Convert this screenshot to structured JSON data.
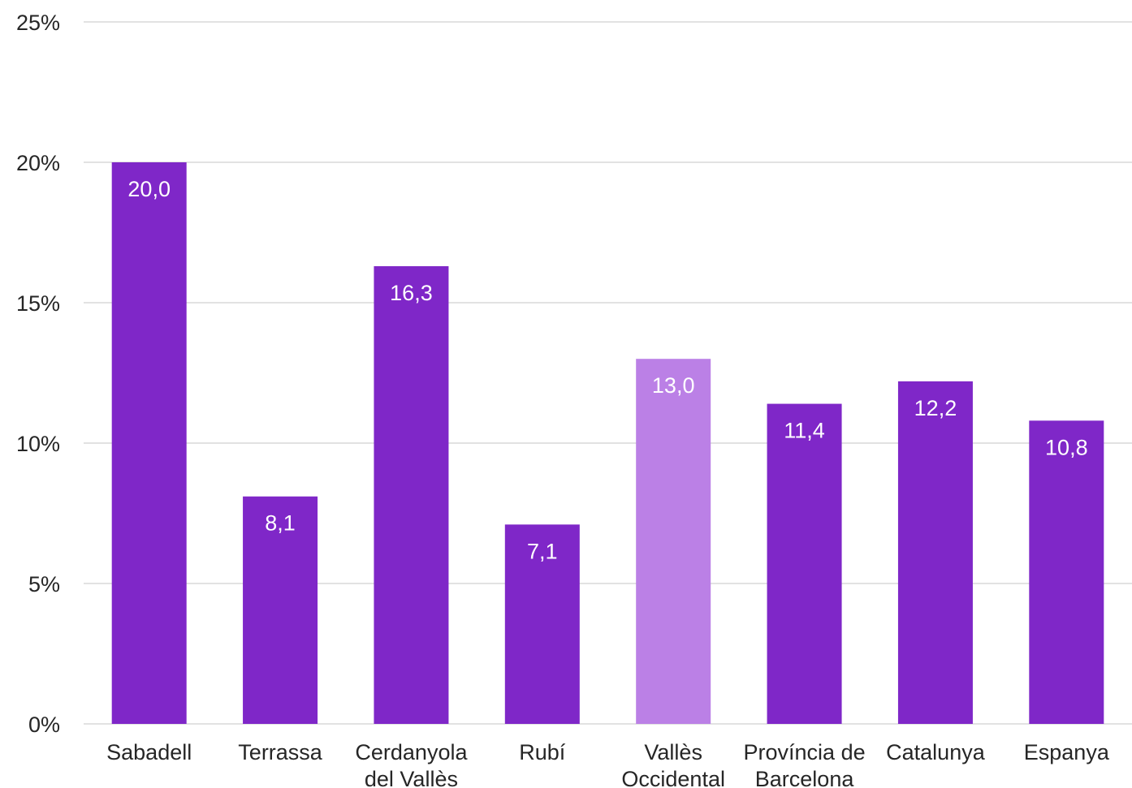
{
  "chart_data": {
    "type": "bar",
    "categories": [
      [
        "Sabadell"
      ],
      [
        "Terrassa"
      ],
      [
        "Cerdanyola",
        "del Vallès"
      ],
      [
        "Rubí"
      ],
      [
        "Vallès",
        "Occidental"
      ],
      [
        "Província de",
        "Barcelona"
      ],
      [
        "Catalunya"
      ],
      [
        "Espanya"
      ]
    ],
    "values": [
      20.0,
      8.1,
      16.3,
      7.1,
      13.0,
      11.4,
      12.2,
      10.8
    ],
    "data_labels": [
      "20,0",
      "8,1",
      "16,3",
      "7,1",
      "13,0",
      "11,4",
      "12,2",
      "10,8"
    ],
    "highlight_index": 4,
    "ylim": [
      0,
      25
    ],
    "yticks": [
      0,
      5,
      10,
      15,
      20,
      25
    ],
    "ytick_labels": [
      "0%",
      "5%",
      "10%",
      "15%",
      "20%",
      "25%"
    ],
    "grid": true,
    "colors": {
      "bar": "#7f27c8",
      "bar_highlight": "#bb80e6",
      "grid": "#d9d9d9",
      "text": "#262626",
      "data_label": "#ffffff"
    }
  }
}
